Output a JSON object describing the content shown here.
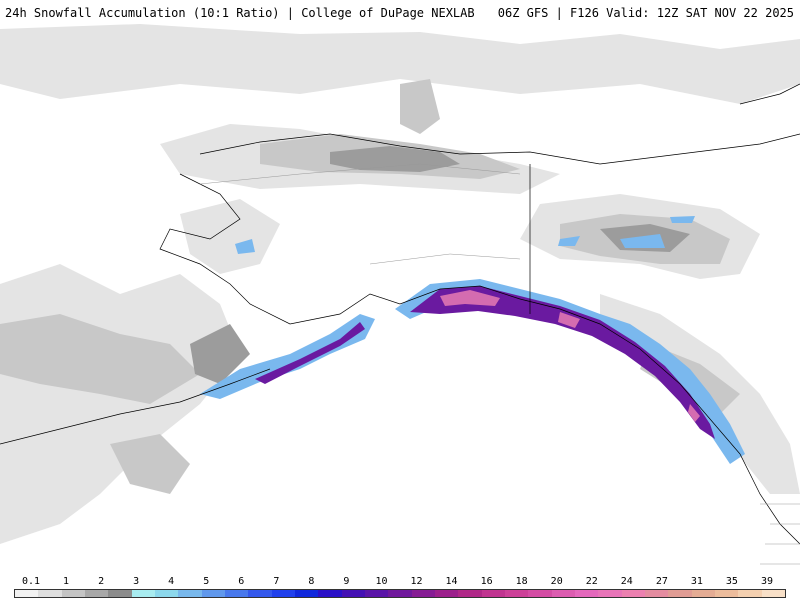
{
  "header": {
    "left_title": "24h Snowfall Accumulation (10:1 Ratio) | College of DuPage NEXLAB",
    "right_title": "06Z GFS | F126 Valid: 12Z SAT NOV 22 2025"
  },
  "legend": {
    "labels": [
      "0.1",
      "1",
      "2",
      "3",
      "4",
      "5",
      "6",
      "7",
      "8",
      "9",
      "10",
      "12",
      "14",
      "16",
      "18",
      "20",
      "22",
      "24",
      "27",
      "31",
      "35",
      "39"
    ],
    "colors": [
      "#f2f2f2",
      "#dedede",
      "#c4c4c4",
      "#a8a8a8",
      "#8c8c8c",
      "#a8ecf0",
      "#8cd8ec",
      "#78b8ec",
      "#6098ec",
      "#4878ec",
      "#3458ec",
      "#2040ec",
      "#1028dc",
      "#2a10c8",
      "#4410b4",
      "#5a14a8",
      "#70189c",
      "#861c94",
      "#9c208c",
      "#b02888",
      "#c03490",
      "#cc4098",
      "#d44ca4",
      "#dc5cb0",
      "#e468bc",
      "#e874b8",
      "#ec80b0",
      "#e48ca0",
      "#e09c94",
      "#e4ac94",
      "#ecbc9c",
      "#f4d0b0",
      "#f8e0c8"
    ]
  },
  "map": {
    "features": [
      "alaska-region",
      "gulf-of-alaska",
      "aleutian-islands",
      "british-columbia-coast"
    ],
    "colors": {
      "ocean": "#ffffff",
      "land_outline": "#000000",
      "gray_light": "#e0e0e0",
      "gray_mid": "#c6c6c6",
      "gray_dark": "#9a9a9a",
      "cyan": "#a8ecf0",
      "blue": "#3458ec",
      "purple": "#6a1aa0",
      "magenta": "#c43c9a",
      "pink": "#e480b0"
    }
  }
}
